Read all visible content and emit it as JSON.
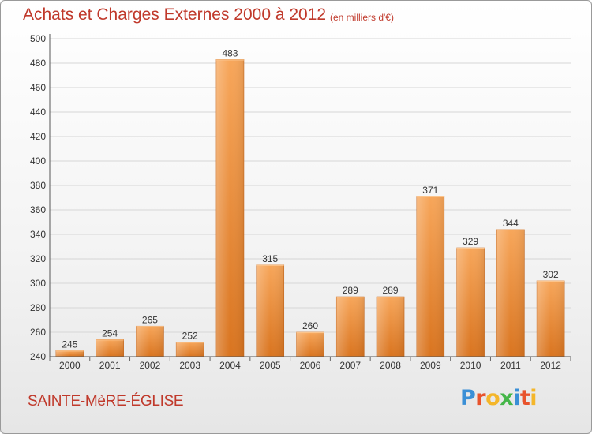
{
  "header": {
    "title": "Achats et Charges Externes 2000 à 2012",
    "subtitle": "(en milliers d'€)"
  },
  "footer": {
    "commune": "SAINTE-MèRE-ÉGLISE",
    "logo_letters": [
      "P",
      "r",
      "o",
      "x",
      "i",
      "t",
      "i"
    ],
    "logo_colors": [
      "#3a8fd6",
      "#e8532c",
      "#f4b62a",
      "#45b649",
      "#3a8fd6",
      "#e8532c",
      "#f4b62a"
    ]
  },
  "chart_data": {
    "type": "bar",
    "title": "Achats et Charges Externes 2000 à 2012",
    "subtitle": "(en milliers d'€)",
    "categories": [
      "2000",
      "2001",
      "2002",
      "2003",
      "2004",
      "2005",
      "2006",
      "2007",
      "2008",
      "2009",
      "2010",
      "2011",
      "2012"
    ],
    "values": [
      245,
      254,
      265,
      252,
      483,
      315,
      260,
      289,
      289,
      371,
      329,
      344,
      302
    ],
    "ylim": [
      240,
      500
    ],
    "yticks": [
      240,
      260,
      280,
      300,
      320,
      340,
      360,
      380,
      400,
      420,
      440,
      460,
      480,
      500
    ],
    "grid": true,
    "bar_color": "#f0953d"
  }
}
